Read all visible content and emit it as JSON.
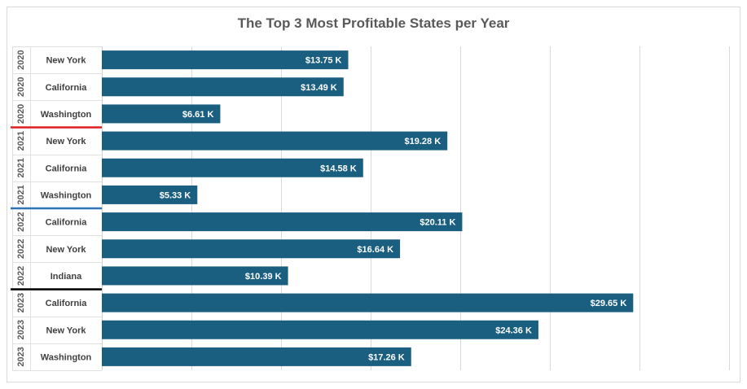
{
  "chart_data": {
    "type": "bar",
    "orientation": "horizontal",
    "title": "The Top 3 Most Profitable States per Year",
    "categories": [
      {
        "year": "2020",
        "state": "New York"
      },
      {
        "year": "2020",
        "state": "California"
      },
      {
        "year": "2020",
        "state": "Washington"
      },
      {
        "year": "2021",
        "state": "New York"
      },
      {
        "year": "2021",
        "state": "California"
      },
      {
        "year": "2021",
        "state": "Washington"
      },
      {
        "year": "2022",
        "state": "California"
      },
      {
        "year": "2022",
        "state": "New York"
      },
      {
        "year": "2022",
        "state": "Indiana"
      },
      {
        "year": "2023",
        "state": "California"
      },
      {
        "year": "2023",
        "state": "New York"
      },
      {
        "year": "2023",
        "state": "Washington"
      }
    ],
    "values": [
      13.75,
      13.49,
      6.61,
      19.28,
      14.58,
      5.33,
      20.11,
      16.64,
      10.39,
      29.65,
      24.36,
      17.26
    ],
    "data_labels": [
      "$13.75 K",
      "$13.49 K",
      "$6.61 K",
      "$19.28 K",
      "$14.58 K",
      "$5.33 K",
      "$20.11 K",
      "$16.64 K",
      "$10.39 K",
      "$29.65 K",
      "$24.36 K",
      "$17.26 K"
    ],
    "xlim": [
      0,
      35
    ],
    "x_gridline_step": 5,
    "x_tick_labels_visible": false,
    "grid": true,
    "legend": "none",
    "year_separator_colors": [
      "#e02020",
      "#2e75b6",
      "#000000"
    ],
    "bar_color": "#1a5e80",
    "label_color": "#ffffff"
  }
}
